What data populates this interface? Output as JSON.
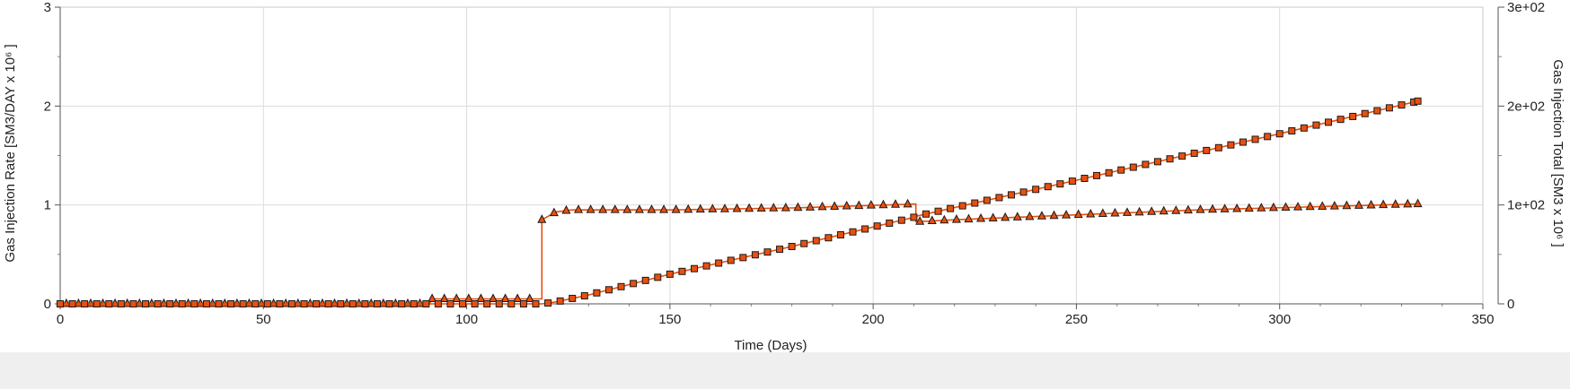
{
  "chart_data": {
    "type": "line",
    "xlabel": "Time (Days)",
    "ylabel_left": "Gas Injection Rate [SM3/DAY x 10⁶ ]",
    "ylabel_right": "Gas Injection Total [SM3 x 10⁶ ]",
    "xlim": [
      0,
      350
    ],
    "ylim_left": [
      0,
      3
    ],
    "ylim_right": [
      0,
      300
    ],
    "x_ticks": [
      "0",
      "50",
      "100",
      "150",
      "200",
      "250",
      "300",
      "350"
    ],
    "y_left_ticks": [
      "0",
      "1",
      "2",
      "3"
    ],
    "y_right_ticks": [
      "0",
      "1e+02",
      "2e+02",
      "3e+02"
    ],
    "grid": true,
    "line_color": "#e8500f",
    "series": [
      {
        "axis": "left",
        "marker": "triangle",
        "points": [
          [
            0,
            0
          ],
          [
            91,
            0
          ],
          [
            91,
            0.05
          ],
          [
            118.5,
            0.05
          ],
          [
            118.5,
            0.85
          ],
          [
            122,
            0.93
          ],
          [
            126,
            0.95
          ],
          [
            150,
            0.95
          ],
          [
            180,
            0.97
          ],
          [
            210.5,
            1.01
          ],
          [
            210.5,
            0.83
          ],
          [
            220,
            0.85
          ],
          [
            250,
            0.9
          ],
          [
            280,
            0.95
          ],
          [
            334,
            1.01
          ]
        ]
      },
      {
        "axis": "right",
        "marker": "square",
        "points": [
          [
            0,
            0
          ],
          [
            118.5,
            0
          ],
          [
            122,
            2
          ],
          [
            130,
            9
          ],
          [
            150,
            30
          ],
          [
            180,
            58
          ],
          [
            210.5,
            88
          ],
          [
            211,
            89
          ],
          [
            250,
            125
          ],
          [
            300,
            172
          ],
          [
            334,
            205
          ]
        ]
      }
    ]
  }
}
